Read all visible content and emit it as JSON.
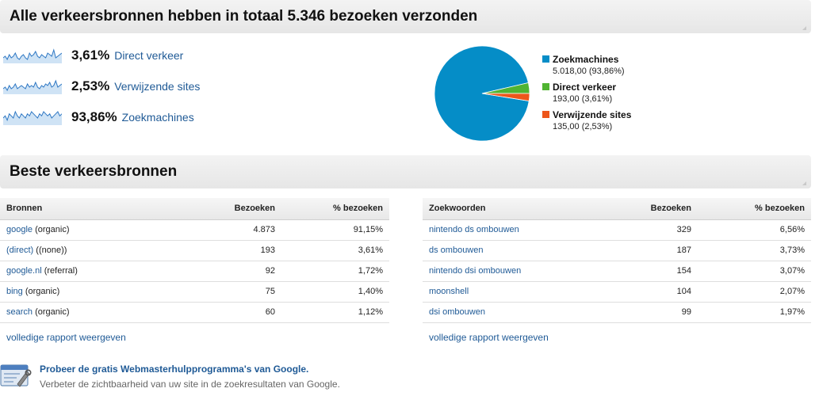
{
  "overview": {
    "title": "Alle verkeersbronnen hebben in totaal 5.346 bezoeken verzonden",
    "sources": [
      {
        "pct": "3,61%",
        "name": "Direct verkeer",
        "spark": [
          6,
          7,
          5,
          8,
          6,
          7,
          9,
          6,
          5,
          7,
          8,
          6,
          5,
          9,
          7,
          8,
          10,
          7,
          6,
          8,
          7,
          6,
          9,
          8,
          7,
          11,
          6,
          7,
          8,
          9
        ]
      },
      {
        "pct": "2,53%",
        "name": "Verwijzende sites",
        "spark": [
          5,
          6,
          4,
          7,
          5,
          6,
          8,
          5,
          6,
          7,
          6,
          5,
          8,
          6,
          7,
          6,
          9,
          6,
          5,
          7,
          6,
          8,
          7,
          9,
          6,
          7,
          10,
          6,
          7,
          8
        ]
      },
      {
        "pct": "93,86%",
        "name": "Zoekmachines",
        "spark": [
          7,
          8,
          6,
          9,
          8,
          7,
          10,
          8,
          7,
          9,
          8,
          7,
          9,
          8,
          10,
          9,
          8,
          7,
          9,
          8,
          10,
          9,
          8,
          9,
          7,
          8,
          9,
          10,
          8,
          9
        ]
      }
    ]
  },
  "chart_data": {
    "type": "pie",
    "categories": [
      "Zoekmachines",
      "Direct verkeer",
      "Verwijzende sites"
    ],
    "values": [
      5018,
      193,
      135
    ],
    "labels": [
      "5.018,00 (93,86%)",
      "193,00 (3,61%)",
      "135,00 (2,53%)"
    ],
    "colors": [
      "#058dc7",
      "#50b432",
      "#ed561b"
    ],
    "legend": "right"
  },
  "best": {
    "title": "Beste verkeersbronnen"
  },
  "sources_table": {
    "headers": [
      "Bronnen",
      "Bezoeken",
      "% bezoeken"
    ],
    "rows": [
      {
        "link": "google",
        "extra": " (organic)",
        "visits": "4.873",
        "pct": "91,15%"
      },
      {
        "link": "(direct)",
        "extra": " ((none))",
        "visits": "193",
        "pct": "3,61%"
      },
      {
        "link": "google.nl",
        "extra": " (referral)",
        "visits": "92",
        "pct": "1,72%"
      },
      {
        "link": "bing",
        "extra": " (organic)",
        "visits": "75",
        "pct": "1,40%"
      },
      {
        "link": "search",
        "extra": " (organic)",
        "visits": "60",
        "pct": "1,12%"
      }
    ],
    "full_report": "volledige rapport weergeven"
  },
  "keywords_table": {
    "headers": [
      "Zoekwoorden",
      "Bezoeken",
      "% bezoeken"
    ],
    "rows": [
      {
        "link": "nintendo ds ombouwen",
        "visits": "329",
        "pct": "6,56%"
      },
      {
        "link": "ds ombouwen",
        "visits": "187",
        "pct": "3,73%"
      },
      {
        "link": "nintendo dsi ombouwen",
        "visits": "154",
        "pct": "3,07%"
      },
      {
        "link": "moonshell",
        "visits": "104",
        "pct": "2,07%"
      },
      {
        "link": "dsi ombouwen",
        "visits": "99",
        "pct": "1,97%"
      }
    ],
    "full_report": "volledige rapport weergeven"
  },
  "promo": {
    "icon": "webmaster-tools-icon",
    "title": "Probeer de gratis Webmasterhulpprogramma's van Google.",
    "subtitle": "Verbeter de zichtbaarheid van uw site in de zoekresultaten van Google."
  }
}
